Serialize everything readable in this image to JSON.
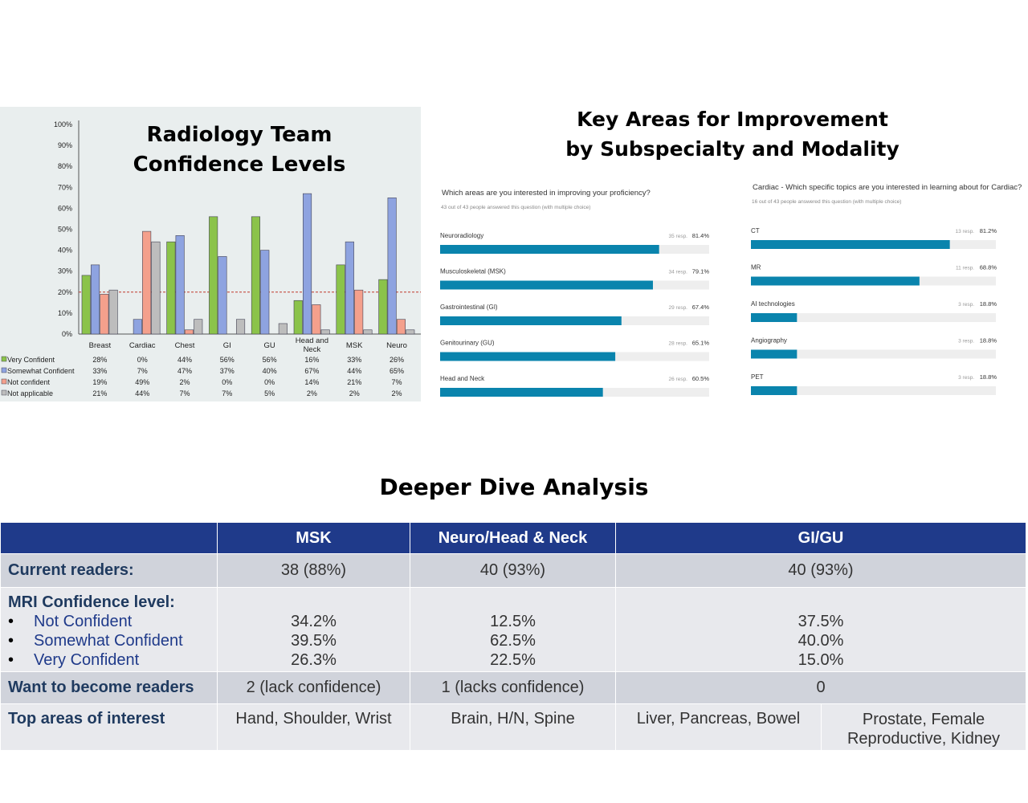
{
  "left_title": [
    "Radiology Team",
    "Confidence Levels"
  ],
  "right_title": [
    "Key Areas for Improvement",
    "by Subspecialty and Modality"
  ],
  "deeper_title": "Deeper Dive Analysis",
  "colors": {
    "very": "#8bc34a",
    "somewhat": "#8ea3e0",
    "not": "#f4a08c",
    "na": "#bdbdbd",
    "bar": "#0a84ad",
    "header": "#1f3a8a"
  },
  "chart_data": [
    {
      "type": "bar",
      "title": "Radiology Team Confidence Levels",
      "categories": [
        "Breast",
        "Cardiac",
        "Chest",
        "GI",
        "GU",
        "Head and Neck",
        "MSK",
        "Neuro"
      ],
      "ylim": [
        0,
        100
      ],
      "yticks": [
        "0%",
        "10%",
        "20%",
        "30%",
        "40%",
        "50%",
        "60%",
        "70%",
        "80%",
        "90%",
        "100%"
      ],
      "reference_line": 20,
      "series": [
        {
          "name": "Very Confident",
          "values": [
            28,
            0,
            44,
            56,
            56,
            16,
            33,
            26
          ],
          "labels": [
            "28%",
            "0%",
            "44%",
            "56%",
            "56%",
            "16%",
            "33%",
            "26%"
          ]
        },
        {
          "name": "Somewhat Confident",
          "values": [
            33,
            7,
            47,
            37,
            40,
            67,
            44,
            65
          ],
          "labels": [
            "33%",
            "7%",
            "47%",
            "37%",
            "40%",
            "67%",
            "44%",
            "65%"
          ]
        },
        {
          "name": "Not confident",
          "values": [
            19,
            49,
            2,
            0,
            0,
            14,
            21,
            7
          ],
          "labels": [
            "19%",
            "49%",
            "2%",
            "0%",
            "0%",
            "14%",
            "21%",
            "7%"
          ]
        },
        {
          "name": "Not applicable",
          "values": [
            21,
            44,
            7,
            7,
            5,
            2,
            2,
            2
          ],
          "labels": [
            "21%",
            "44%",
            "7%",
            "7%",
            "5%",
            "2%",
            "2%",
            "2%"
          ]
        }
      ]
    },
    {
      "type": "bar",
      "orientation": "horizontal",
      "question": "Which areas are you interested in improving your proficiency?",
      "subtitle": "43 out of 43 people answered this question (with multiple choice)",
      "categories": [
        "Neuroradiology",
        "Musculoskeletal (MSK)",
        "Gastrointestinal (GI)",
        "Genitourinary (GU)",
        "Head and Neck"
      ],
      "values": [
        81.4,
        79.1,
        67.4,
        65.1,
        60.5
      ],
      "counts": [
        "35 resp.",
        "34 resp.",
        "29 resp.",
        "28 resp.",
        "26 resp."
      ],
      "pct_labels": [
        "81.4%",
        "79.1%",
        "67.4%",
        "65.1%",
        "60.5%"
      ]
    },
    {
      "type": "bar",
      "orientation": "horizontal",
      "question": "Cardiac - Which specific topics are you interested in learning about for Cardiac?",
      "subtitle": "16 out of 43 people answered this question (with multiple choice)",
      "categories": [
        "CT",
        "MR",
        "AI technologies",
        "Angiography",
        "PET"
      ],
      "values": [
        81.2,
        68.8,
        18.8,
        18.8,
        18.8
      ],
      "counts": [
        "13 resp.",
        "11 resp.",
        "3 resp.",
        "3 resp.",
        "3 resp."
      ],
      "pct_labels": [
        "81.2%",
        "68.8%",
        "18.8%",
        "18.8%",
        "18.8%"
      ]
    }
  ],
  "table": {
    "headers": [
      "MSK",
      "Neuro/Head & Neck",
      "GI/GU"
    ],
    "current_readers": {
      "label": "Current readers:",
      "msk": "38 (88%)",
      "neuro": "40 (93%)",
      "gigu": "40 (93%)"
    },
    "mri": {
      "label": "MRI Confidence level:",
      "items": [
        "Not Confident",
        "Somewhat Confident",
        "Very Confident"
      ],
      "bullet": "•",
      "msk": [
        "34.2%",
        "39.5%",
        "26.3%"
      ],
      "neuro": [
        "12.5%",
        "62.5%",
        "22.5%"
      ],
      "gigu": [
        "37.5%",
        "40.0%",
        "15.0%"
      ]
    },
    "want": {
      "label": "Want to become readers",
      "msk": "2 (lack confidence)",
      "neuro": "1 (lacks confidence)",
      "gigu": "0"
    },
    "top": {
      "label": "Top areas of interest",
      "msk": "Hand, Shoulder, Wrist",
      "neuro": "Brain, H/N, Spine",
      "gi": "Liver, Pancreas, Bowel",
      "gu": "Prostate, Female Reproductive, Kidney"
    }
  }
}
